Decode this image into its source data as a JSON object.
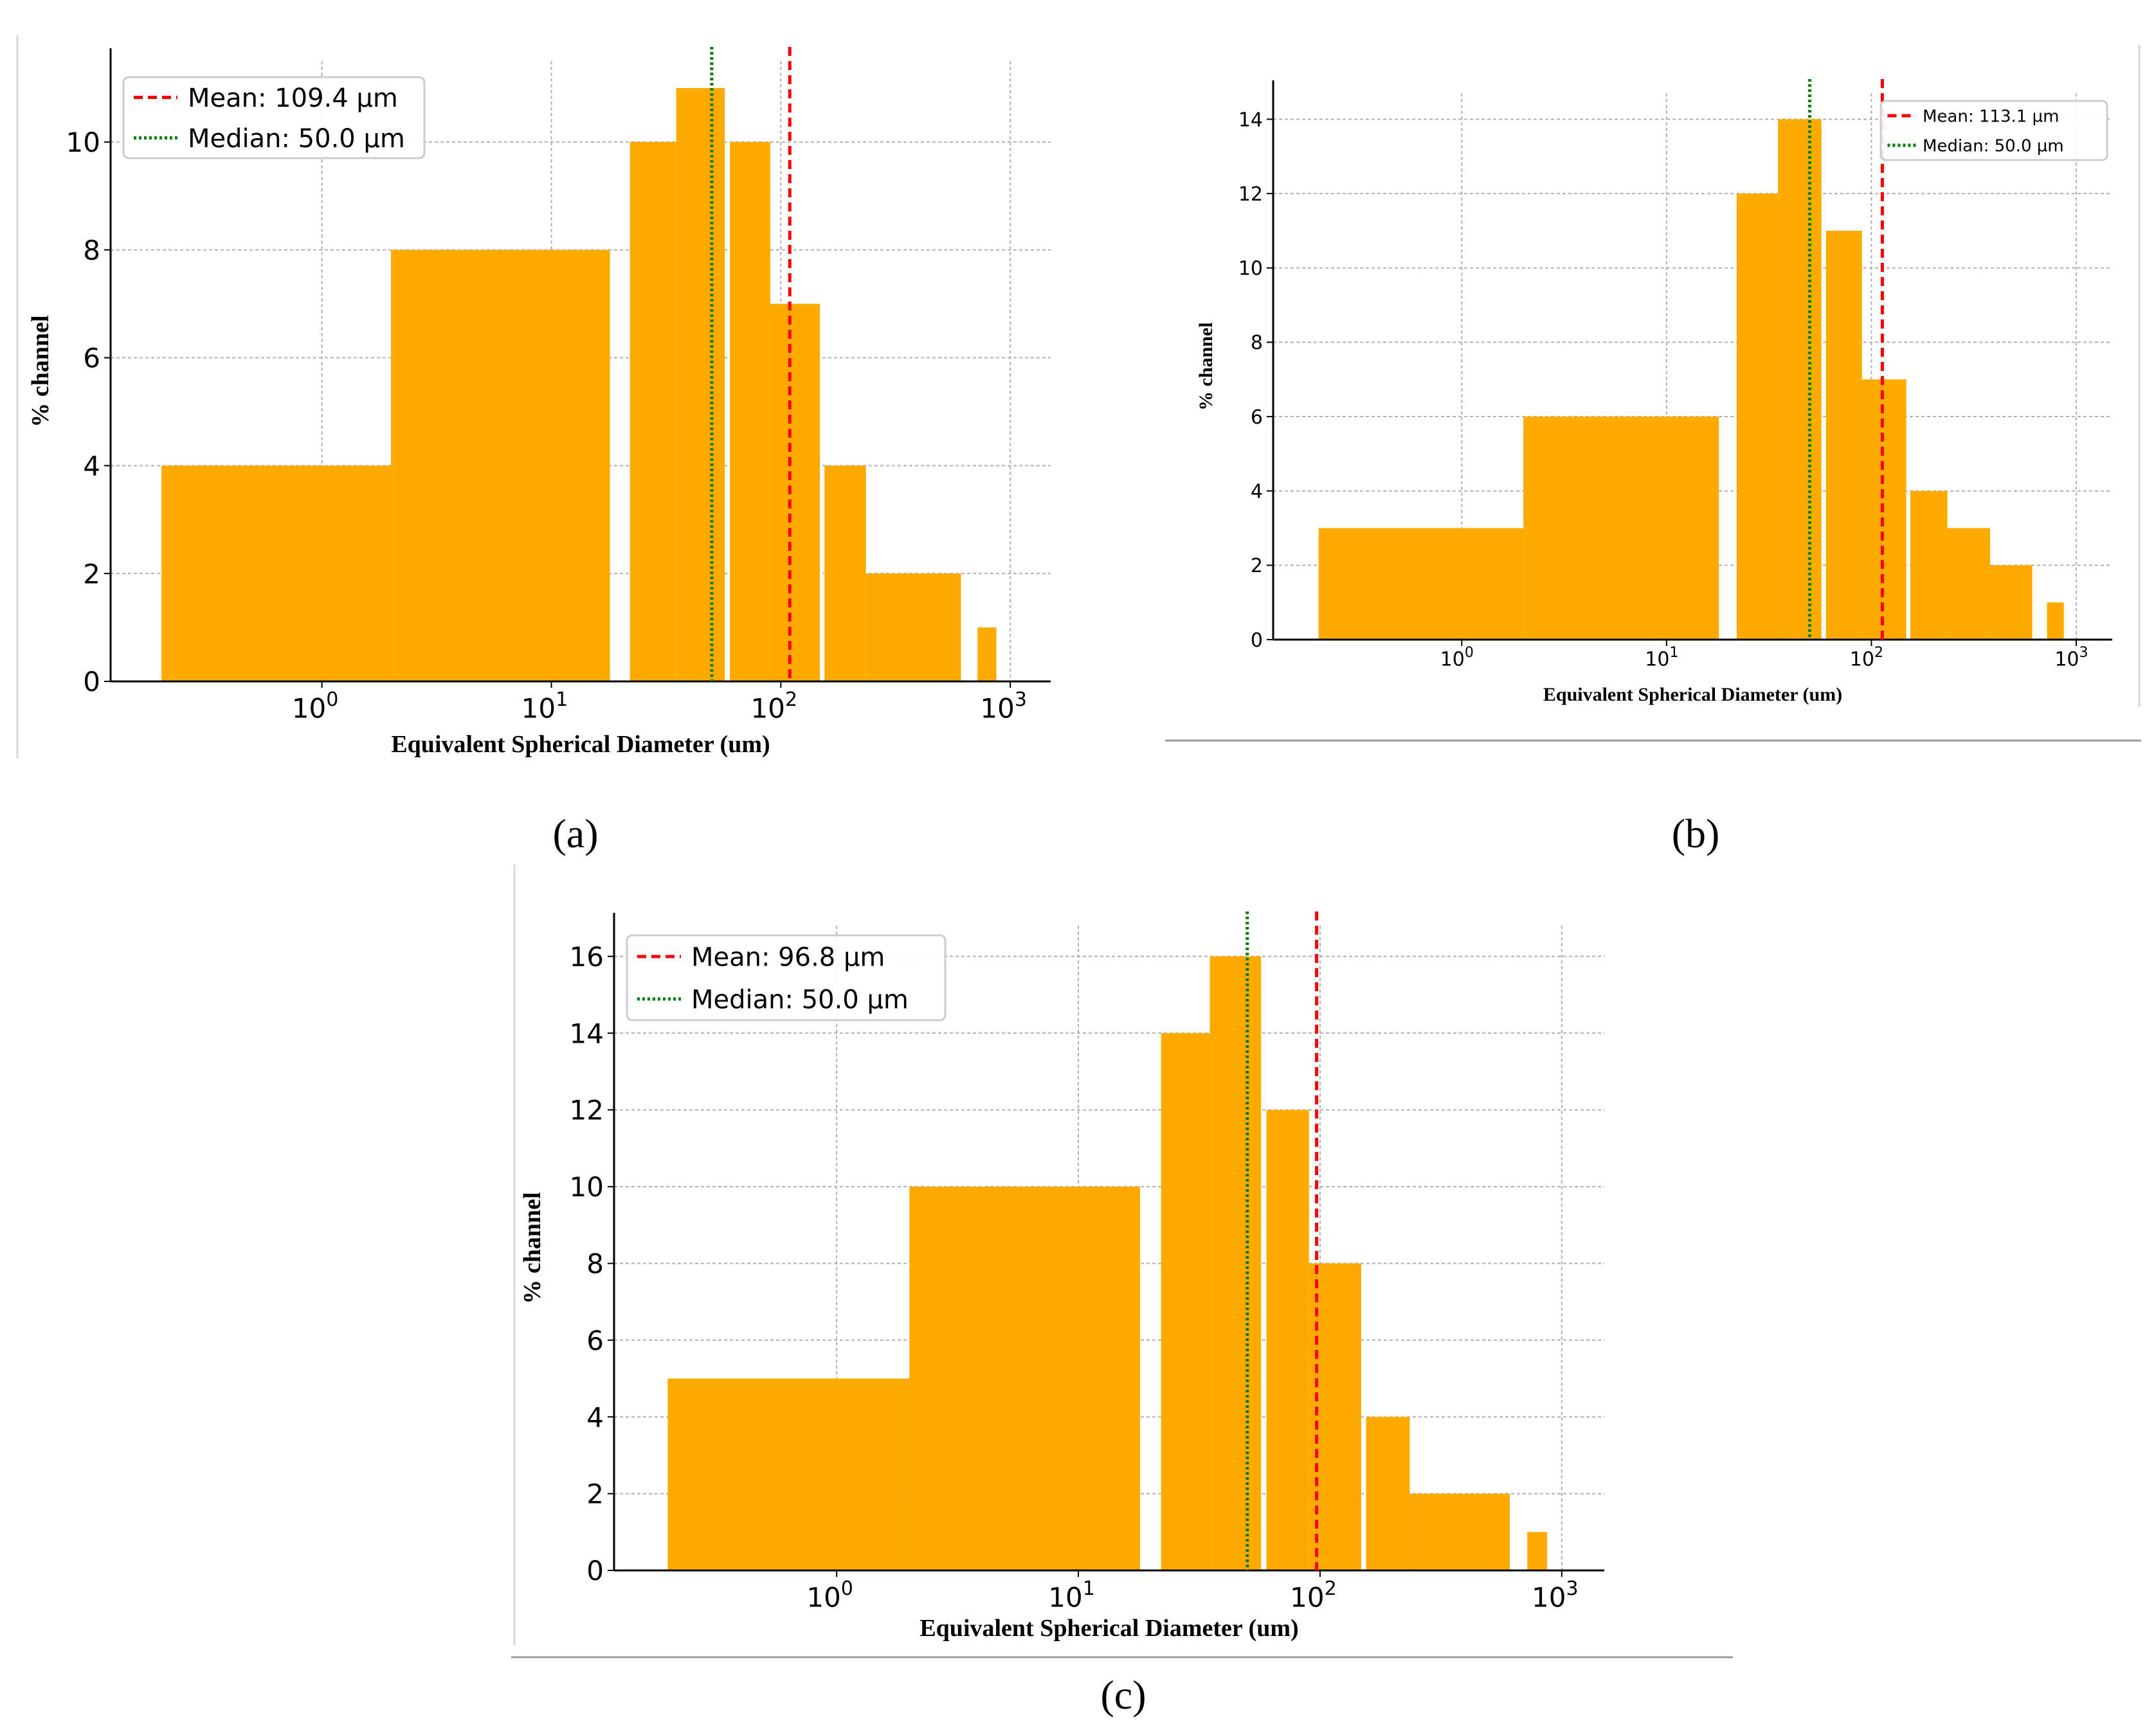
{
  "figure": {
    "panel_labels": [
      "(a)",
      "(b)",
      "(c)"
    ]
  },
  "colors": {
    "bar": "#FFAA00",
    "mean_line": "#FF0000",
    "median_line": "#008000",
    "grid": "#B0B0B0",
    "axis": "#000000"
  },
  "chart_data": [
    {
      "panel": "(a)",
      "type": "bar",
      "title": "",
      "xlabel": "Equivalent Spherical Diameter (um)",
      "ylabel": "% channel",
      "xscale": "log",
      "xlim": [
        0.12,
        1500
      ],
      "ylim": [
        0,
        11.5
      ],
      "xticks": [
        {
          "value": 1,
          "base": "10",
          "exp": "0"
        },
        {
          "value": 10,
          "base": "10",
          "exp": "1"
        },
        {
          "value": 100,
          "base": "10",
          "exp": "2"
        },
        {
          "value": 1000,
          "base": "10",
          "exp": "3"
        }
      ],
      "yticks": [
        0,
        2,
        4,
        6,
        8,
        10
      ],
      "grid": true,
      "legend_position": "top-left",
      "bins": [
        {
          "from": 0.2,
          "to": 2,
          "value": 4
        },
        {
          "from": 2,
          "to": 18,
          "value": 8
        },
        {
          "from": 22,
          "to": 35,
          "value": 10
        },
        {
          "from": 35,
          "to": 57,
          "value": 11
        },
        {
          "from": 60,
          "to": 90,
          "value": 10
        },
        {
          "from": 90,
          "to": 148,
          "value": 7
        },
        {
          "from": 155,
          "to": 235,
          "value": 4
        },
        {
          "from": 235,
          "to": 610,
          "value": 2
        },
        {
          "from": 720,
          "to": 870,
          "value": 1
        }
      ],
      "mean": {
        "value": 109.4,
        "label": "Mean:  109.4  µm"
      },
      "median": {
        "value": 50.0,
        "label": "Median:  50.0  µm"
      }
    },
    {
      "panel": "(b)",
      "type": "bar",
      "title": "",
      "xlabel": "Equivalent Spherical Diameter (um)",
      "ylabel": "% channel",
      "xscale": "log",
      "xlim": [
        0.12,
        1500
      ],
      "ylim": [
        0,
        14.7
      ],
      "xticks": [
        {
          "value": 1,
          "base": "10",
          "exp": "0"
        },
        {
          "value": 10,
          "base": "10",
          "exp": "1"
        },
        {
          "value": 100,
          "base": "10",
          "exp": "2"
        },
        {
          "value": 1000,
          "base": "10",
          "exp": "3"
        }
      ],
      "yticks": [
        0,
        2,
        4,
        6,
        8,
        10,
        12,
        14
      ],
      "grid": true,
      "legend_position": "top-right",
      "bins": [
        {
          "from": 0.2,
          "to": 2,
          "value": 3
        },
        {
          "from": 2,
          "to": 18,
          "value": 6
        },
        {
          "from": 22,
          "to": 35,
          "value": 12
        },
        {
          "from": 35,
          "to": 57,
          "value": 14
        },
        {
          "from": 60,
          "to": 90,
          "value": 11
        },
        {
          "from": 90,
          "to": 148,
          "value": 7
        },
        {
          "from": 155,
          "to": 235,
          "value": 4
        },
        {
          "from": 235,
          "to": 380,
          "value": 3
        },
        {
          "from": 380,
          "to": 610,
          "value": 2
        },
        {
          "from": 720,
          "to": 870,
          "value": 1
        }
      ],
      "mean": {
        "value": 113.1,
        "label": "Mean: 113.1 µm"
      },
      "median": {
        "value": 50.0,
        "label": "Median: 50.0 µm"
      }
    },
    {
      "panel": "(c)",
      "type": "bar",
      "title": "",
      "xlabel": "Equivalent Spherical Diameter (um)",
      "ylabel": "% channel",
      "xscale": "log",
      "xlim": [
        0.12,
        1500
      ],
      "ylim": [
        0,
        16.8
      ],
      "xticks": [
        {
          "value": 1,
          "base": "10",
          "exp": "0"
        },
        {
          "value": 10,
          "base": "10",
          "exp": "1"
        },
        {
          "value": 100,
          "base": "10",
          "exp": "2"
        },
        {
          "value": 1000,
          "base": "10",
          "exp": "3"
        }
      ],
      "yticks": [
        0,
        2,
        4,
        6,
        8,
        10,
        12,
        14,
        16
      ],
      "grid": true,
      "legend_position": "top-left",
      "bins": [
        {
          "from": 0.2,
          "to": 2,
          "value": 5
        },
        {
          "from": 2,
          "to": 18,
          "value": 10
        },
        {
          "from": 22,
          "to": 35,
          "value": 14
        },
        {
          "from": 35,
          "to": 57,
          "value": 16
        },
        {
          "from": 60,
          "to": 90,
          "value": 12
        },
        {
          "from": 90,
          "to": 148,
          "value": 8
        },
        {
          "from": 155,
          "to": 235,
          "value": 4
        },
        {
          "from": 235,
          "to": 610,
          "value": 2
        },
        {
          "from": 720,
          "to": 870,
          "value": 1
        }
      ],
      "mean": {
        "value": 96.8,
        "label": "Mean:  96.8  µm"
      },
      "median": {
        "value": 50.0,
        "label": "Median:  50.0  µm"
      }
    }
  ]
}
